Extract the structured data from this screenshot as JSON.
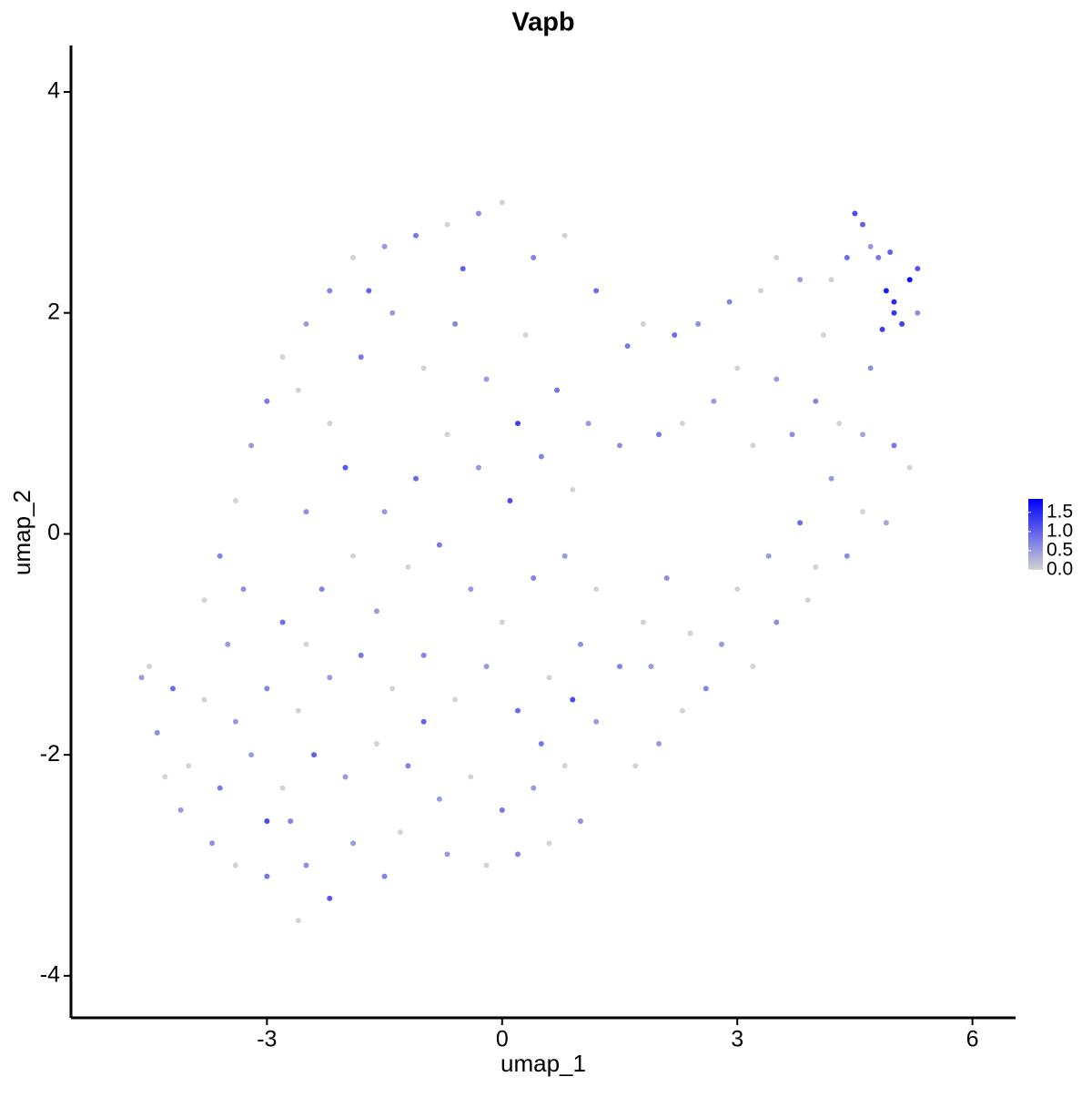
{
  "chart_data": {
    "type": "scatter",
    "title": "Vapb",
    "x_label": "umap_1",
    "y_label": "umap_2",
    "xlim": [
      -5.5,
      6.55
    ],
    "ylim": [
      -4.38,
      4.42
    ],
    "xticks": [
      -3,
      0,
      3,
      6
    ],
    "yticks": [
      -4,
      -2,
      0,
      2,
      4
    ],
    "color_low": "#d3d3d3",
    "color_high": "#0000ff",
    "color_lim": [
      0,
      1.85
    ],
    "color_ticks": [
      {
        "value": 0,
        "label": "0.0"
      },
      0.5,
      {
        "value": 1,
        "label": "1.0"
      },
      1.5
    ],
    "x": [
      4.5,
      4.6,
      4.8,
      4.9,
      5.0,
      5.1,
      5.2,
      5.3,
      4.4,
      4.7,
      5.0,
      4.85,
      5.3,
      4.95,
      4.2,
      3.5,
      3.8,
      3.3,
      2.9,
      2.5,
      2.2,
      1.8,
      1.6,
      3.0,
      3.5,
      4.0,
      4.3,
      4.6,
      5.0,
      5.2,
      3.7,
      3.2,
      2.7,
      2.3,
      2.0,
      1.5,
      4.2,
      4.6,
      4.9,
      4.4,
      4.0,
      3.8,
      3.4,
      3.0,
      3.5,
      3.2,
      2.8,
      2.6,
      2.3,
      2.0,
      1.7,
      2.1,
      1.8,
      1.5,
      1.2,
      3.9,
      4.7,
      4.1,
      1.2,
      0.8,
      0.4,
      0.0,
      -0.3,
      -0.7,
      -1.1,
      -1.5,
      -1.9,
      -2.2,
      -2.5,
      -2.8,
      -3.0,
      -3.2,
      -3.4,
      -3.6,
      -3.8,
      -3.5,
      -2.8,
      -2.5,
      -2.2,
      -1.8,
      -1.4,
      -1.0,
      -0.6,
      -0.2,
      0.3,
      0.7,
      1.1,
      0.9,
      0.5,
      0.1,
      -0.3,
      -0.7,
      -1.1,
      -1.5,
      -1.9,
      -2.3,
      -1.6,
      -1.2,
      -0.8,
      -0.4,
      0.0,
      0.4,
      0.8,
      1.2,
      1.0,
      0.6,
      0.2,
      -0.2,
      -0.6,
      -1.0,
      -1.4,
      -1.8,
      -2.2,
      -2.6,
      -3.0,
      -3.4,
      -3.8,
      -4.2,
      -4.6,
      -4.5,
      -4.4,
      -4.0,
      -3.6,
      -3.2,
      -2.8,
      -2.4,
      -2.0,
      -1.6,
      -1.2,
      -0.8,
      -0.4,
      0.0,
      0.4,
      0.8,
      1.0,
      0.6,
      0.2,
      -0.2,
      -0.7,
      -1.3,
      -1.5,
      -1.9,
      -2.2,
      -2.6,
      -2.5,
      -3.0,
      -3.4,
      -3.7,
      -4.1,
      -4.3,
      -3.0,
      -2.7,
      -1.0,
      -0.5,
      -2.0,
      0.2,
      0.9,
      1.9,
      2.4,
      -2.5,
      -1.7,
      -2.6,
      0.5,
      -3.3
    ],
    "y": [
      2.9,
      2.8,
      2.5,
      2.2,
      2.0,
      1.9,
      2.3,
      2.4,
      2.5,
      2.6,
      2.1,
      1.85,
      2.0,
      2.55,
      2.3,
      2.5,
      2.3,
      2.2,
      2.1,
      1.9,
      1.8,
      1.9,
      1.7,
      1.5,
      1.4,
      1.2,
      1.0,
      0.9,
      0.8,
      0.6,
      0.9,
      0.8,
      1.2,
      1.0,
      0.9,
      0.8,
      0.5,
      0.2,
      0.1,
      -0.2,
      -0.3,
      0.1,
      -0.2,
      -0.5,
      -0.8,
      -1.2,
      -1.0,
      -1.4,
      -1.6,
      -1.9,
      -2.1,
      -0.4,
      -0.8,
      -1.2,
      -1.7,
      -0.6,
      1.5,
      1.8,
      2.2,
      2.7,
      2.5,
      3.0,
      2.9,
      2.8,
      2.7,
      2.6,
      2.5,
      2.2,
      1.9,
      1.6,
      1.2,
      0.8,
      0.3,
      -0.2,
      -0.6,
      -1.0,
      -0.8,
      0.2,
      1.0,
      1.6,
      2.0,
      1.5,
      1.9,
      1.4,
      1.8,
      1.3,
      1.0,
      0.4,
      0.7,
      0.3,
      0.6,
      0.9,
      0.5,
      0.2,
      -0.2,
      -0.5,
      -0.7,
      -0.3,
      -0.1,
      -0.5,
      -0.8,
      -0.4,
      -0.2,
      -0.5,
      -1.0,
      -1.3,
      -1.6,
      -1.2,
      -1.5,
      -1.1,
      -1.4,
      -1.1,
      -1.3,
      -1.6,
      -1.4,
      -1.7,
      -1.5,
      -1.4,
      -1.3,
      -1.2,
      -1.8,
      -2.1,
      -2.3,
      -2.0,
      -2.3,
      -2.0,
      -2.2,
      -1.9,
      -2.1,
      -2.4,
      -2.2,
      -2.5,
      -2.3,
      -2.1,
      -2.6,
      -2.8,
      -2.9,
      -3.0,
      -2.9,
      -2.7,
      -3.1,
      -2.8,
      -3.3,
      -3.5,
      -3.0,
      -3.1,
      -3.0,
      -2.8,
      -2.5,
      -2.2,
      -2.6,
      -2.6,
      -1.7,
      2.4,
      0.6,
      1.0,
      -1.5,
      -1.2,
      -0.9,
      -1.0,
      2.2,
      1.3,
      -1.9,
      -0.5
    ],
    "values": [
      1.2,
      1.0,
      0.8,
      1.6,
      1.4,
      1.3,
      1.7,
      1.1,
      0.9,
      0.5,
      1.5,
      1.3,
      0.6,
      1.0,
      0,
      0,
      0.5,
      0,
      0.7,
      0.6,
      0.9,
      0,
      0.8,
      0,
      0.5,
      0.7,
      0,
      0.4,
      0.8,
      0,
      0.6,
      0,
      0.5,
      0,
      0.8,
      0.6,
      0.5,
      0,
      0.4,
      0.6,
      0,
      0.9,
      0.5,
      0,
      0.6,
      0,
      0.5,
      0.7,
      0,
      0.5,
      0,
      0.6,
      0,
      0.7,
      0.5,
      0,
      0.6,
      0,
      0.9,
      0,
      0.7,
      0,
      0.6,
      0,
      0.8,
      0.5,
      0,
      0.7,
      0.5,
      0,
      0.8,
      0.5,
      0,
      0.7,
      0,
      0.5,
      0.9,
      0.6,
      0,
      0.8,
      0.5,
      0,
      0.7,
      0.5,
      0,
      0.8,
      0.5,
      0,
      0.7,
      1.2,
      0.5,
      0,
      0.9,
      0.5,
      0,
      0.7,
      0.5,
      0,
      0.8,
      0.5,
      0,
      0.7,
      0.5,
      0,
      0.6,
      0,
      0.9,
      0.5,
      0,
      0.7,
      0,
      0.8,
      0.5,
      0,
      0.7,
      0.5,
      0,
      0.9,
      0.5,
      0,
      0.6,
      0,
      0.8,
      0.5,
      0,
      1.0,
      0.5,
      0,
      0.7,
      0.5,
      0,
      0.8,
      0.5,
      0,
      0.6,
      0,
      0.7,
      0,
      0.5,
      0,
      0.7,
      0.5,
      1.1,
      0,
      0.6,
      0.8,
      0,
      0.6,
      0.5,
      0,
      1.2,
      0.7,
      1.0,
      1.0,
      1.1,
      1.3,
      1.2,
      0.5,
      0,
      0,
      1.0,
      0,
      0.8,
      0.6
    ]
  }
}
